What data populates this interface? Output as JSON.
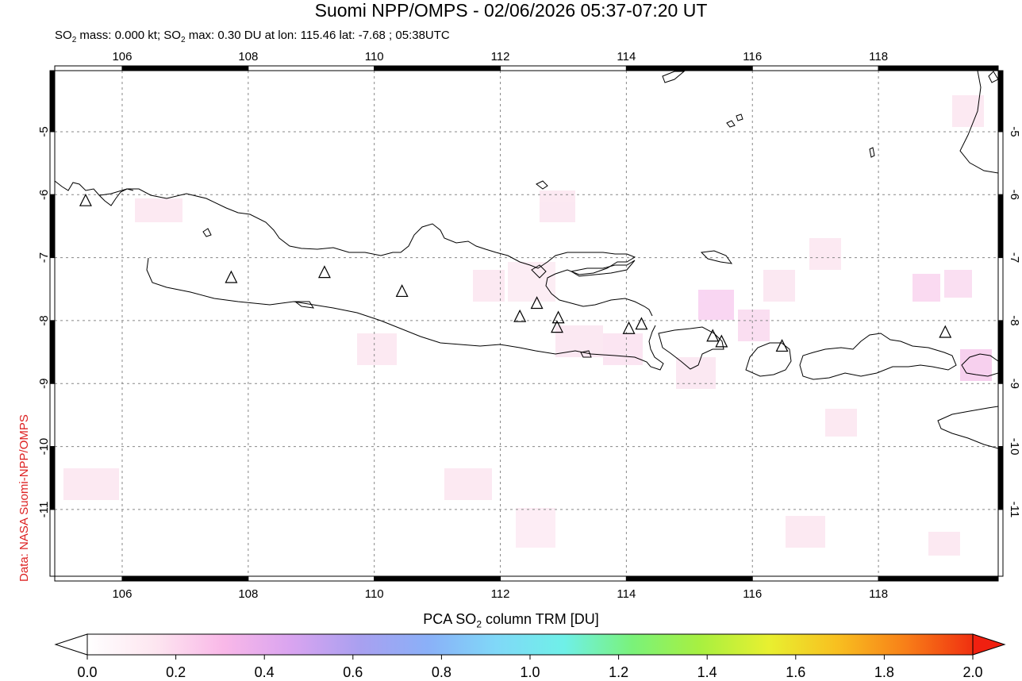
{
  "title": "Suomi NPP/OMPS - 02/06/2026 05:37-07:20 UT",
  "subtitle": {
    "prefix": "SO",
    "sub1": "2",
    "mid": " mass: 0.000 kt; SO",
    "sub2": "2",
    "suffix": " max: 0.30 DU at lon: 115.46 lat: -7.68 ; 05:38UTC"
  },
  "credit": "Data: NASA Suomi-NPP/OMPS",
  "map": {
    "lon_range": [
      104.93,
      119.9
    ],
    "lat_range": [
      -12.06,
      -4.03
    ],
    "lon_ticks": [
      106,
      108,
      110,
      112,
      114,
      116,
      118
    ],
    "lat_ticks": [
      -5,
      -6,
      -7,
      -8,
      -9,
      -10,
      -11
    ],
    "lon_labels": [
      "106",
      "108",
      "110",
      "112",
      "114",
      "116",
      "118"
    ],
    "lat_labels": [
      "-5",
      "-6",
      "-7",
      "-8",
      "-9",
      "-10",
      "-11"
    ],
    "grid": true,
    "volcanoes": [
      {
        "lon": 105.42,
        "lat": -6.1
      },
      {
        "lon": 107.73,
        "lat": -7.32
      },
      {
        "lon": 109.21,
        "lat": -7.24
      },
      {
        "lon": 110.44,
        "lat": -7.54
      },
      {
        "lon": 112.31,
        "lat": -7.94
      },
      {
        "lon": 112.58,
        "lat": -7.73
      },
      {
        "lon": 112.92,
        "lat": -7.96
      },
      {
        "lon": 112.9,
        "lat": -8.11
      },
      {
        "lon": 114.04,
        "lat": -8.13
      },
      {
        "lon": 114.24,
        "lat": -8.06
      },
      {
        "lon": 115.37,
        "lat": -8.25
      },
      {
        "lon": 115.51,
        "lat": -8.34
      },
      {
        "lon": 116.47,
        "lat": -8.41
      },
      {
        "lon": 119.06,
        "lat": -8.19
      }
    ],
    "colors": {
      "coast": "#000000",
      "grid": "#888888",
      "volcano": "#000000"
    }
  },
  "colorbar": {
    "title_prefix": "PCA SO",
    "title_sub": "2",
    "title_suffix": " column TRM [DU]",
    "range": [
      0.0,
      2.0
    ],
    "tick_values": [
      0.0,
      0.2,
      0.4,
      0.6,
      0.8,
      1.0,
      1.2,
      1.4,
      1.6,
      1.8,
      2.0
    ],
    "tick_labels": [
      "0.0",
      "0.2",
      "0.4",
      "0.6",
      "0.8",
      "1.0",
      "1.2",
      "1.4",
      "1.6",
      "1.8",
      "2.0"
    ],
    "stops": [
      "#ffffff",
      "#fde6f0",
      "#f9b8e8",
      "#d9a4f0",
      "#a9a0f0",
      "#8ab0f8",
      "#80d8f8",
      "#6ff0e8",
      "#7af27a",
      "#a8f040",
      "#e8f030",
      "#f8c020",
      "#f88018",
      "#f03010"
    ],
    "under_color": "#ffffff",
    "over_color": "#f02010"
  }
}
